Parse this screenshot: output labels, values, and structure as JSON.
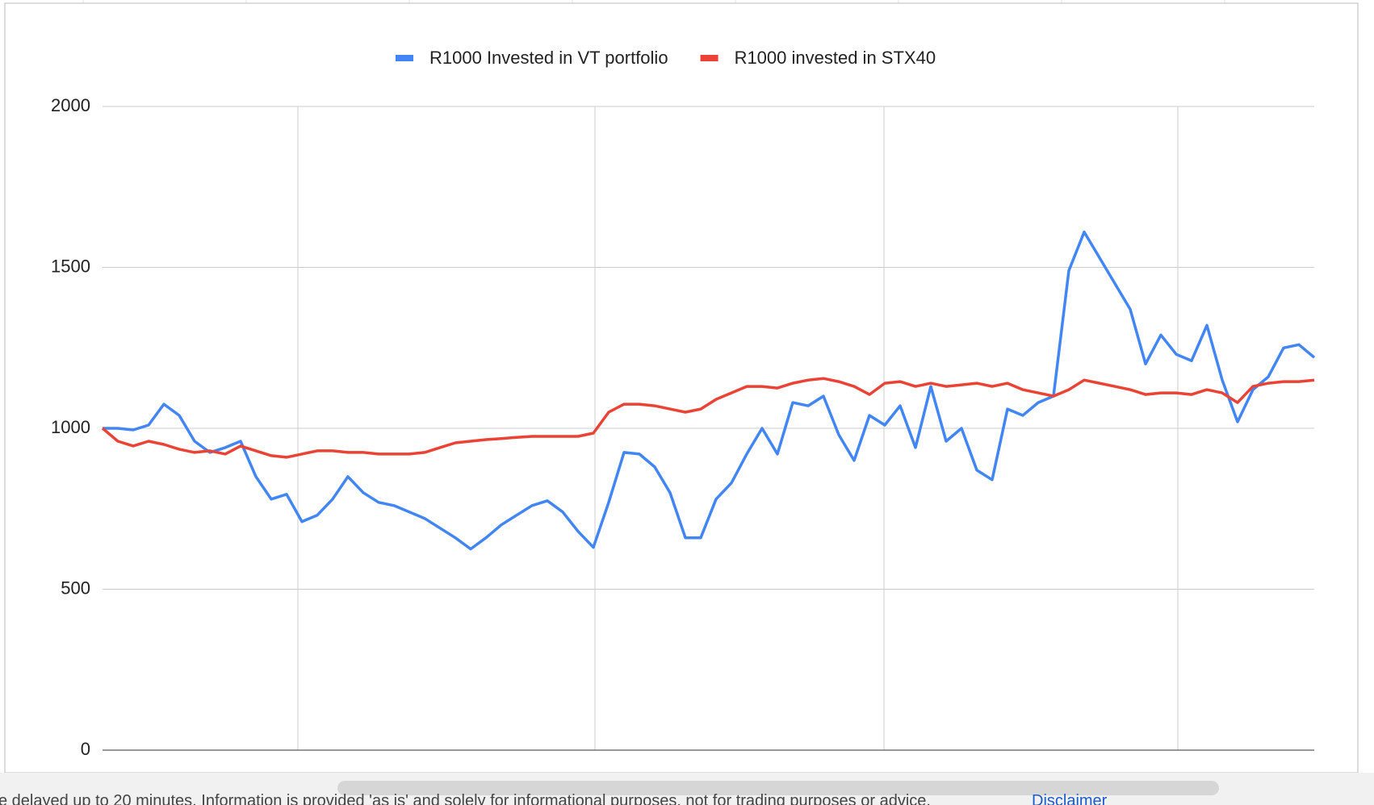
{
  "chart_data": {
    "type": "line",
    "legend": "top",
    "grid": true,
    "ylim": [
      0,
      2000
    ],
    "yticks": [
      0,
      500,
      1000,
      1500,
      2000
    ],
    "categories": [
      null,
      null,
      null,
      null,
      null,
      null,
      null,
      null,
      null,
      null,
      null,
      null,
      null,
      null,
      null,
      null,
      null,
      null,
      null,
      null,
      null,
      null,
      null,
      null,
      null,
      null,
      null,
      null,
      null,
      null,
      null,
      null,
      null,
      null,
      null,
      null,
      null,
      null,
      null,
      null,
      null,
      null,
      null,
      null,
      null,
      null,
      null,
      null,
      null,
      null,
      null,
      null,
      null,
      null,
      null,
      null,
      null,
      null,
      null,
      null,
      null,
      null,
      null,
      null,
      null,
      null,
      null,
      null,
      null,
      null,
      null,
      null,
      null,
      null,
      null,
      null,
      null,
      null,
      null,
      null
    ],
    "series": [
      {
        "name": "R1000 Invested in VT portfolio",
        "color": "#4285f4",
        "values": [
          1000,
          1000,
          995,
          1010,
          1075,
          1040,
          960,
          925,
          940,
          960,
          850,
          780,
          795,
          710,
          730,
          780,
          850,
          800,
          770,
          760,
          740,
          720,
          690,
          660,
          625,
          660,
          700,
          730,
          760,
          775,
          740,
          680,
          630,
          770,
          925,
          920,
          880,
          800,
          660,
          660,
          780,
          830,
          920,
          1000,
          920,
          1080,
          1070,
          1100,
          980,
          900,
          1040,
          1010,
          1070,
          940,
          1130,
          960,
          1000,
          870,
          840,
          1060,
          1040,
          1080,
          1100,
          1490,
          1610,
          1530,
          1450,
          1370,
          1200,
          1290,
          1230,
          1210,
          1320,
          1150,
          1020,
          1120,
          1160,
          1250,
          1260,
          1220
        ]
      },
      {
        "name": "R1000 invested in STX40",
        "color": "#ea4335",
        "values": [
          1000,
          960,
          945,
          960,
          950,
          935,
          925,
          930,
          920,
          945,
          930,
          915,
          910,
          920,
          930,
          930,
          925,
          925,
          920,
          920,
          920,
          925,
          940,
          955,
          960,
          965,
          968,
          972,
          975,
          975,
          975,
          975,
          985,
          1050,
          1075,
          1075,
          1070,
          1060,
          1050,
          1060,
          1090,
          1110,
          1130,
          1130,
          1125,
          1140,
          1150,
          1155,
          1145,
          1130,
          1105,
          1140,
          1145,
          1130,
          1140,
          1130,
          1135,
          1140,
          1130,
          1140,
          1120,
          1110,
          1100,
          1120,
          1150,
          1140,
          1130,
          1120,
          1105,
          1110,
          1110,
          1105,
          1120,
          1110,
          1080,
          1130,
          1140,
          1145,
          1145,
          1150
        ]
      }
    ]
  },
  "footer": {
    "notice": "e delayed up to 20 minutes. Information is provided 'as is' and solely for informational purposes, not for trading purposes or advice.",
    "link": "Disclaimer"
  }
}
